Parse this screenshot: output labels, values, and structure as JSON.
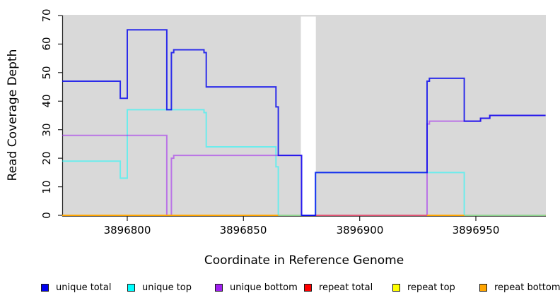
{
  "chart_data": {
    "type": "line",
    "subtype": "step-coverage-plot",
    "title": "",
    "xlabel": "Coordinate in Reference Genome",
    "ylabel": "Read Coverage Depth",
    "x_domain": [
      3896772,
      3896980
    ],
    "ylim": [
      0,
      70
    ],
    "x_ticks": [
      3896800,
      3896850,
      3896900,
      3896950
    ],
    "x_tick_labels": [
      "3896800",
      "3896850",
      "3896900",
      "3896950"
    ],
    "y_ticks": [
      0,
      10,
      20,
      30,
      40,
      50,
      60,
      70
    ],
    "y_tick_labels": [
      "0",
      "10",
      "20",
      "30",
      "40",
      "50",
      "60",
      "70"
    ],
    "grid": false,
    "plot_background": "#d9d9d9",
    "gap_region": {
      "start": 3896875,
      "end": 3896881,
      "color": "#ffffff"
    },
    "steps_format": "[start_coordinate, depth_value] holds until next entry",
    "series": [
      {
        "name": "repeat total",
        "color": "#ff0000",
        "opacity": 1,
        "width": 2,
        "steps": [
          [
            3896772,
            0
          ]
        ]
      },
      {
        "name": "repeat top",
        "color": "#ffff00",
        "opacity": 1,
        "width": 2,
        "steps": [
          [
            3896772,
            0
          ]
        ]
      },
      {
        "name": "repeat bottom",
        "color": "#ffa500",
        "opacity": 1,
        "width": 2,
        "steps": [
          [
            3896772,
            0
          ]
        ]
      },
      {
        "name": "unique top",
        "color": "#00ffff",
        "opacity": 0.5,
        "width": 2,
        "steps": [
          [
            3896772,
            19
          ],
          [
            3896797,
            13
          ],
          [
            3896800,
            37
          ],
          [
            3896833,
            36
          ],
          [
            3896834,
            24
          ],
          [
            3896864,
            17
          ],
          [
            3896865,
            0
          ],
          [
            3896881,
            15
          ],
          [
            3896945,
            0
          ]
        ]
      },
      {
        "name": "unique bottom",
        "color": "#a020f0",
        "opacity": 0.55,
        "width": 2,
        "steps": [
          [
            3896772,
            28
          ],
          [
            3896817,
            0
          ],
          [
            3896819,
            20
          ],
          [
            3896820,
            21
          ],
          [
            3896875,
            0
          ],
          [
            3896929,
            32
          ],
          [
            3896930,
            33
          ],
          [
            3896952,
            34
          ],
          [
            3896956,
            35
          ]
        ]
      },
      {
        "name": "unique total",
        "color": "#0000ee",
        "opacity": 0.8,
        "width": 2,
        "steps": [
          [
            3896772,
            47
          ],
          [
            3896797,
            41
          ],
          [
            3896800,
            65
          ],
          [
            3896817,
            37
          ],
          [
            3896819,
            57
          ],
          [
            3896820,
            58
          ],
          [
            3896833,
            57
          ],
          [
            3896834,
            45
          ],
          [
            3896864,
            38
          ],
          [
            3896865,
            21
          ],
          [
            3896875,
            0
          ],
          [
            3896881,
            15
          ],
          [
            3896929,
            47
          ],
          [
            3896930,
            48
          ],
          [
            3896945,
            33
          ],
          [
            3896952,
            34
          ],
          [
            3896956,
            35
          ]
        ]
      }
    ],
    "zero_line_segments": [
      {
        "from": 3896772,
        "to": 3896865,
        "color": "#ffa500"
      },
      {
        "from": 3896865,
        "to": 3896875,
        "color": "#8fd48f"
      },
      {
        "from": 3896875,
        "to": 3896881,
        "color": "#4d4de0"
      },
      {
        "from": 3896881,
        "to": 3896929,
        "color": "#e05575"
      },
      {
        "from": 3896929,
        "to": 3896945,
        "color": "#ffa500"
      },
      {
        "from": 3896945,
        "to": 3896980,
        "color": "#8fd48f"
      }
    ],
    "legend": [
      {
        "label": "unique total",
        "fill": "#0000ee",
        "border": "#1a1a1a"
      },
      {
        "label": "unique top",
        "fill": "#00ffff",
        "border": "#1a1a1a"
      },
      {
        "label": "unique bottom",
        "fill": "#a020f0",
        "border": "#1a1a1a"
      },
      {
        "label": "repeat total",
        "fill": "#ff0000",
        "border": "#1a1a1a"
      },
      {
        "label": "repeat top",
        "fill": "#ffff00",
        "border": "#1a1a1a"
      },
      {
        "label": "repeat bottom",
        "fill": "#ffa500",
        "border": "#1a1a1a"
      }
    ],
    "axis_color": "#222222"
  }
}
